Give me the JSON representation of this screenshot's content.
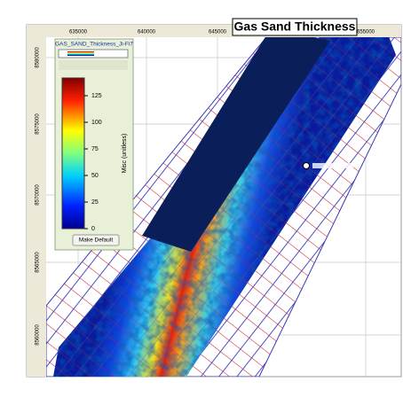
{
  "map": {
    "title": "Gas Sand Thickness",
    "x_labels": [
      "635000",
      "640000",
      "645000",
      "655000"
    ],
    "y_labels": [
      "8580000",
      "8575000",
      "8570000",
      "8565000",
      "8560000"
    ]
  },
  "legend": {
    "name": "GAS_SAND_Thickness_Ji-Fi7",
    "ticks": [
      125,
      100,
      75,
      50,
      25,
      0
    ],
    "axis_label": "Misc (unitless)",
    "button": "Make Default"
  }
}
